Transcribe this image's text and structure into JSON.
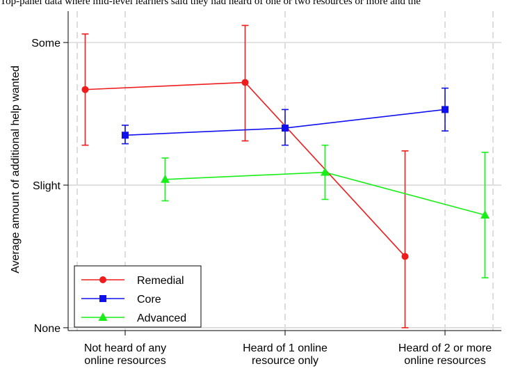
{
  "caption_text": "Top-panel data where mid-level learners said they had heard of one or two resources or more and the",
  "colors": {
    "remedial": "#ee1c1c",
    "core": "#1010ee",
    "advanced": "#18ee18",
    "grid": "#cccccc",
    "axis": "#000000"
  },
  "chart_data": {
    "type": "line",
    "title": "",
    "xlabel": "",
    "ylabel": "Average amount of additional help wanted",
    "categories": [
      [
        "Not heard of any",
        "online resources"
      ],
      [
        "Heard of 1 online",
        "resource only"
      ],
      [
        "Heard of 2 or more",
        "online resources"
      ]
    ],
    "y_ticks": [
      {
        "value": 0,
        "label": "None"
      },
      {
        "value": 1,
        "label": "Slight"
      },
      {
        "value": 2,
        "label": "Some"
      }
    ],
    "ylim": [
      -0.02,
      2.22
    ],
    "grid": true,
    "legend_position": "bottom-left",
    "series": [
      {
        "name": "Remedial",
        "key": "remedial",
        "marker": "circle",
        "offset": -0.25,
        "values": [
          1.67,
          1.72,
          0.5
        ],
        "lower": [
          1.28,
          1.31,
          0.0
        ],
        "upper": [
          2.06,
          2.12,
          1.24
        ]
      },
      {
        "name": "Core",
        "key": "core",
        "marker": "square",
        "offset": 0,
        "values": [
          1.35,
          1.4,
          1.53
        ],
        "lower": [
          1.29,
          1.28,
          1.38
        ],
        "upper": [
          1.42,
          1.53,
          1.68
        ]
      },
      {
        "name": "Advanced",
        "key": "advanced",
        "marker": "triangle",
        "offset": 0.25,
        "values": [
          1.04,
          1.09,
          0.79
        ],
        "lower": [
          0.89,
          0.9,
          0.35
        ],
        "upper": [
          1.19,
          1.28,
          1.23
        ]
      }
    ]
  }
}
